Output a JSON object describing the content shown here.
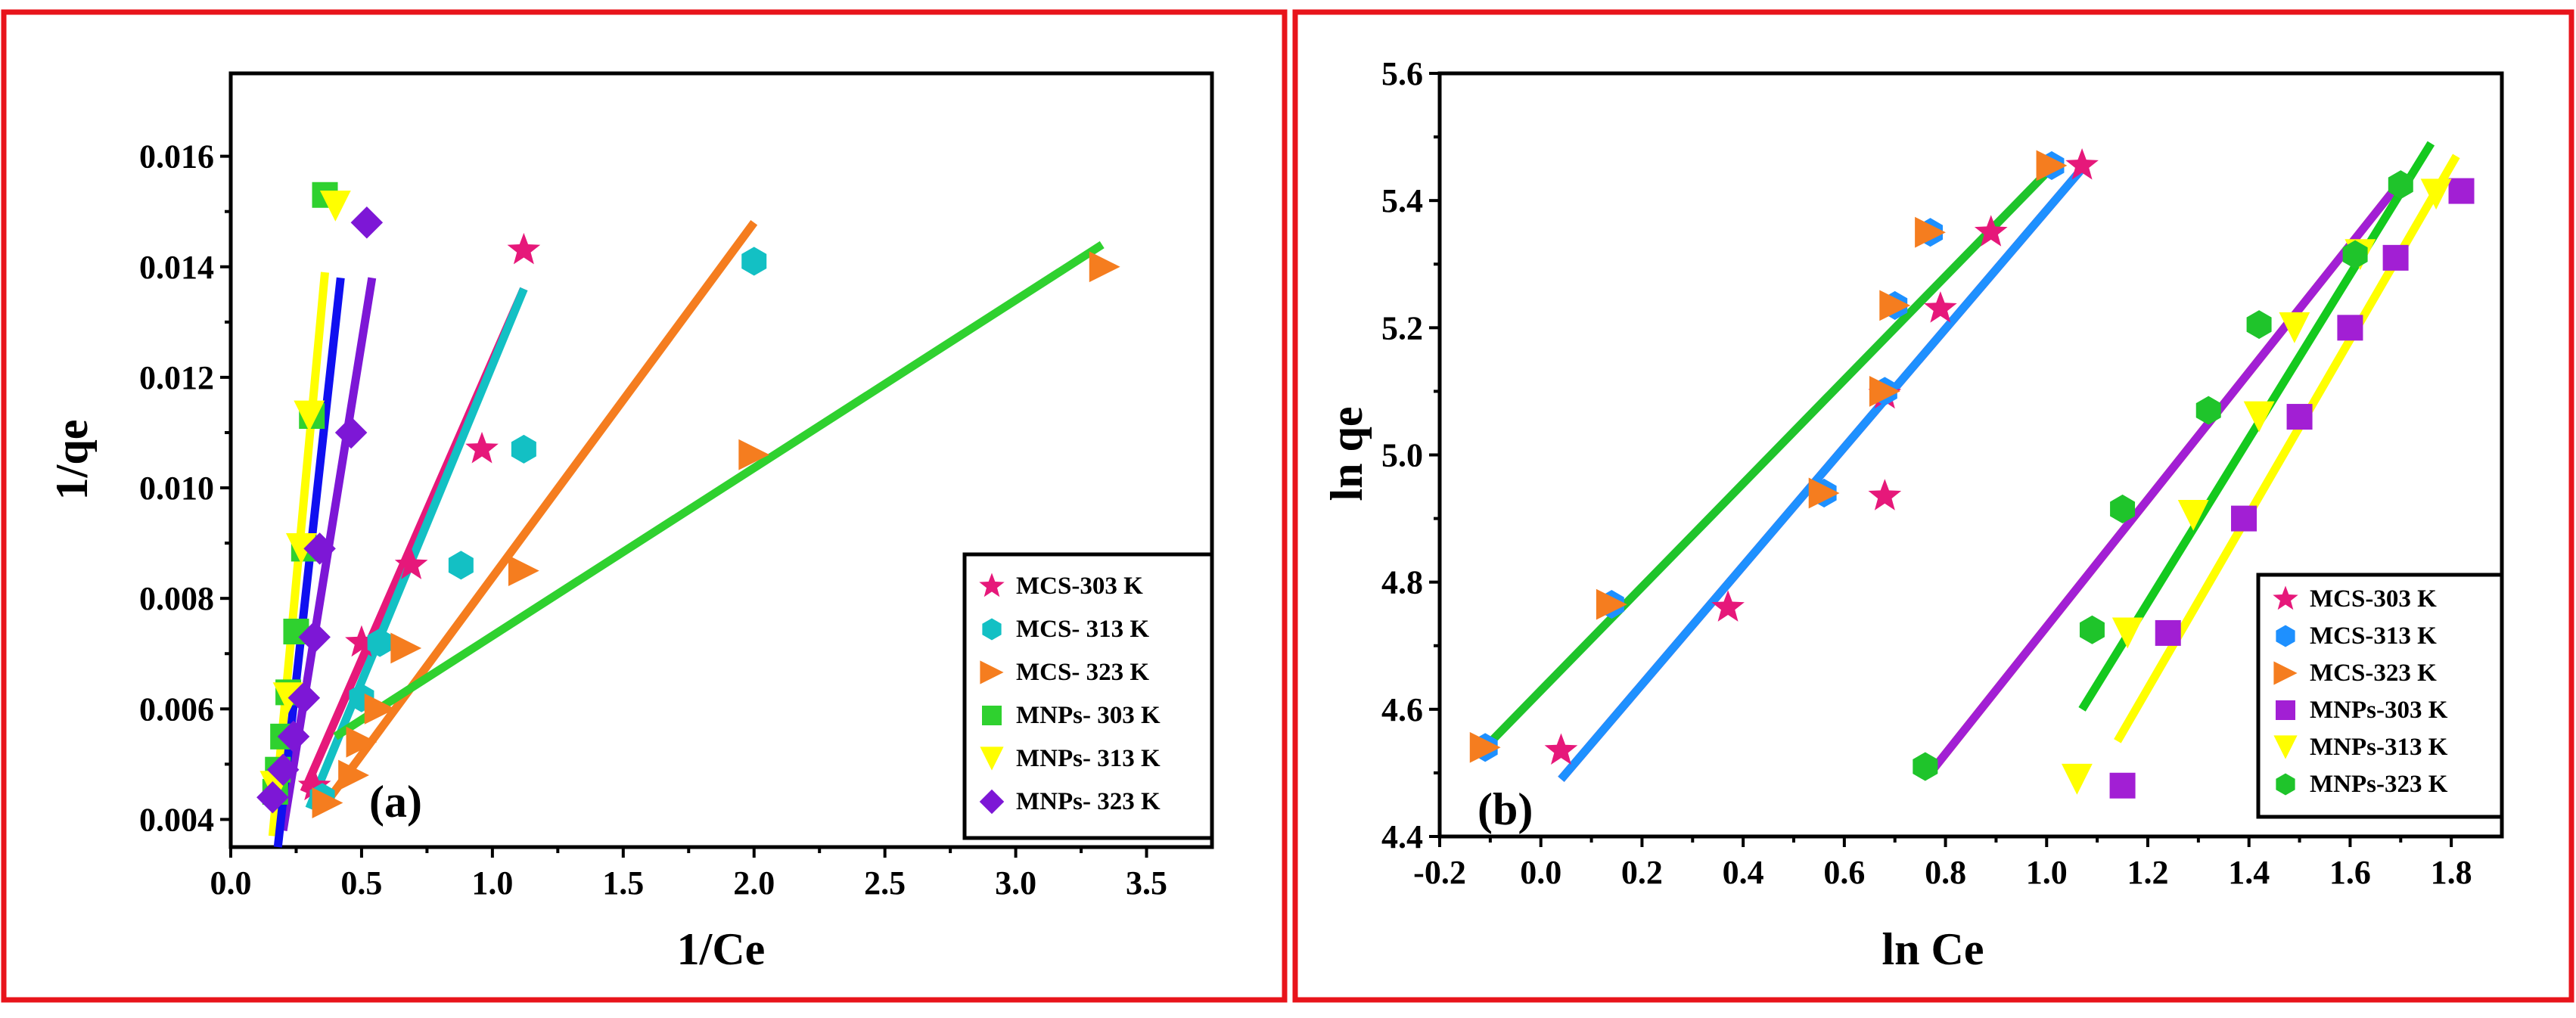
{
  "chart_data": [
    {
      "type": "scatter",
      "panel_label": "(a)",
      "title": "",
      "xlabel": "1/Ce",
      "ylabel": "1/qe",
      "xlim": [
        0.0,
        3.75
      ],
      "ylim": [
        0.0035,
        0.0175
      ],
      "xticks": [
        "0.0",
        "0.5",
        "1.0",
        "1.5",
        "2.0",
        "2.5",
        "3.0",
        "3.5"
      ],
      "yticks": [
        "0.004",
        "0.006",
        "0.008",
        "0.010",
        "0.012",
        "0.014",
        "0.016"
      ],
      "legend_position": "bottom-right",
      "series": [
        {
          "name": "MCS-303 K",
          "color": "#e6187a",
          "marker": "star",
          "points": [
            [
              0.32,
              0.0046
            ],
            [
              0.5,
              0.0072
            ],
            [
              0.69,
              0.0086
            ],
            [
              0.96,
              0.0107
            ],
            [
              1.12,
              0.0143
            ]
          ],
          "fit": [
            [
              0.28,
              0.0045
            ],
            [
              1.12,
              0.0136
            ]
          ]
        },
        {
          "name": "MCS- 313 K",
          "color": "#13c0c4",
          "marker": "hexagon",
          "points": [
            [
              0.35,
              0.0044
            ],
            [
              0.5,
              0.0062
            ],
            [
              0.57,
              0.0072
            ],
            [
              0.88,
              0.0086
            ],
            [
              1.12,
              0.0107
            ],
            [
              2.0,
              0.0141
            ]
          ],
          "fit": [
            [
              0.3,
              0.0042
            ],
            [
              1.12,
              0.0136
            ]
          ]
        },
        {
          "name": "MCS- 323 K",
          "color": "#f57d1f",
          "marker": "triangle-right",
          "points": [
            [
              0.37,
              0.0043
            ],
            [
              0.47,
              0.0048
            ],
            [
              0.5,
              0.0054
            ],
            [
              0.57,
              0.006
            ],
            [
              0.67,
              0.0071
            ],
            [
              1.12,
              0.0085
            ],
            [
              2.0,
              0.0106
            ],
            [
              3.34,
              0.014
            ]
          ],
          "fit": [
            [
              0.38,
              0.0044
            ],
            [
              2.0,
              0.0148
            ]
          ]
        },
        {
          "name": "MNPs- 303 K",
          "color": "#2fd12f",
          "marker": "square",
          "points": [
            [
              0.17,
              0.0045
            ],
            [
              0.18,
              0.0049
            ],
            [
              0.2,
              0.0055
            ],
            [
              0.22,
              0.0063
            ],
            [
              0.25,
              0.0074
            ],
            [
              0.28,
              0.0089
            ],
            [
              0.31,
              0.0113
            ],
            [
              0.36,
              0.0153
            ]
          ],
          "fit": [
            [
              0.4,
              0.0055
            ],
            [
              3.33,
              0.0144
            ]
          ]
        },
        {
          "name": "MNPs- 313 K",
          "color": "#ffff00",
          "marker": "triangle-down",
          "points": [
            [
              0.17,
              0.0046
            ],
            [
              0.22,
              0.0062
            ],
            [
              0.27,
              0.0089
            ],
            [
              0.3,
              0.0113
            ],
            [
              0.4,
              0.0151
            ]
          ],
          "fit": [
            [
              0.16,
              0.0037
            ],
            [
              0.36,
              0.0139
            ]
          ]
        },
        {
          "name": "MNPs- 323 K",
          "color": "#7d17d6",
          "marker": "diamond",
          "points": [
            [
              0.16,
              0.0044
            ],
            [
              0.2,
              0.0049
            ],
            [
              0.24,
              0.0055
            ],
            [
              0.28,
              0.0062
            ],
            [
              0.32,
              0.0073
            ],
            [
              0.34,
              0.0089
            ],
            [
              0.46,
              0.011
            ],
            [
              0.52,
              0.0148
            ]
          ],
          "fit": [
            [
              0.2,
              0.0038
            ],
            [
              0.54,
              0.0138
            ]
          ]
        }
      ],
      "extra_fit_lines": [
        {
          "color": "#1010f0",
          "fit": [
            [
              0.18,
              0.0035
            ],
            [
              0.42,
              0.0138
            ]
          ]
        }
      ]
    },
    {
      "type": "scatter",
      "panel_label": "(b)",
      "title": "",
      "xlabel": "ln Ce",
      "ylabel": "ln qe",
      "xlim": [
        -0.2,
        1.9
      ],
      "ylim": [
        4.4,
        5.6
      ],
      "xticks": [
        "-0.2",
        "0.0",
        "0.2",
        "0.4",
        "0.6",
        "0.8",
        "1.0",
        "1.2",
        "1.4",
        "1.6",
        "1.8"
      ],
      "yticks": [
        "4.4",
        "4.6",
        "4.8",
        "5.0",
        "5.2",
        "5.4",
        "5.6"
      ],
      "legend_position": "bottom-right",
      "series": [
        {
          "name": "MCS-303 K",
          "color": "#e6187a",
          "marker": "star",
          "points": [
            [
              0.04,
              4.535
            ],
            [
              0.37,
              4.76
            ],
            [
              0.68,
              4.935
            ],
            [
              0.68,
              5.095
            ],
            [
              0.79,
              5.23
            ],
            [
              0.89,
              5.35
            ],
            [
              1.07,
              5.455
            ]
          ],
          "fit": [
            [
              0.04,
              4.49
            ],
            [
              1.07,
              5.45
            ]
          ]
        },
        {
          "name": "MCS-313 K",
          "color": "#1e90ff",
          "marker": "hexagon",
          "points": [
            [
              -0.11,
              4.54
            ],
            [
              0.14,
              4.765
            ],
            [
              0.56,
              4.94
            ],
            [
              0.68,
              5.1
            ],
            [
              0.7,
              5.235
            ],
            [
              0.77,
              5.35
            ],
            [
              1.01,
              5.455
            ]
          ],
          "fit": [
            [
              0.04,
              4.49
            ],
            [
              1.07,
              5.45
            ]
          ]
        },
        {
          "name": "MCS-323 K",
          "color": "#f57d1f",
          "marker": "triangle-right",
          "points": [
            [
              -0.11,
              4.54
            ],
            [
              0.14,
              4.765
            ],
            [
              0.56,
              4.94
            ],
            [
              0.68,
              5.1
            ],
            [
              0.7,
              5.235
            ],
            [
              0.77,
              5.35
            ],
            [
              1.01,
              5.455
            ]
          ],
          "fit": [
            [
              0.77,
              4.5
            ],
            [
              1.7,
              5.43
            ]
          ]
        },
        {
          "name": "MNPs-303 K",
          "color": "#a21fd4",
          "marker": "square",
          "points": [
            [
              1.15,
              4.48
            ],
            [
              1.24,
              4.72
            ],
            [
              1.39,
              4.9
            ],
            [
              1.5,
              5.06
            ],
            [
              1.6,
              5.2
            ],
            [
              1.69,
              5.31
            ],
            [
              1.82,
              5.415
            ]
          ],
          "fit": [
            [
              0.77,
              4.5
            ],
            [
              1.7,
              5.43
            ]
          ]
        },
        {
          "name": "MNPs-313 K",
          "color": "#ffff00",
          "marker": "triangle-down",
          "points": [
            [
              1.06,
              4.49
            ],
            [
              1.16,
              4.72
            ],
            [
              1.29,
              4.905
            ],
            [
              1.42,
              5.06
            ],
            [
              1.49,
              5.2
            ],
            [
              1.62,
              5.315
            ],
            [
              1.77,
              5.41
            ]
          ],
          "fit": [
            [
              1.14,
              4.55
            ],
            [
              1.81,
              5.47
            ]
          ]
        },
        {
          "name": "MNPs-323 K",
          "color": "#1fc42b",
          "marker": "hexagon",
          "points": [
            [
              0.76,
              4.51
            ],
            [
              1.09,
              4.725
            ],
            [
              1.15,
              4.915
            ],
            [
              1.32,
              5.07
            ],
            [
              1.42,
              5.205
            ],
            [
              1.61,
              5.315
            ],
            [
              1.7,
              5.425
            ]
          ],
          "fit": [
            [
              -0.11,
              4.54
            ],
            [
              1.02,
              5.46
            ]
          ]
        }
      ],
      "extra_fit_lines": [
        {
          "color": "#14c91e",
          "fit": [
            [
              1.07,
              4.6
            ],
            [
              1.76,
              5.49
            ]
          ]
        }
      ]
    }
  ]
}
